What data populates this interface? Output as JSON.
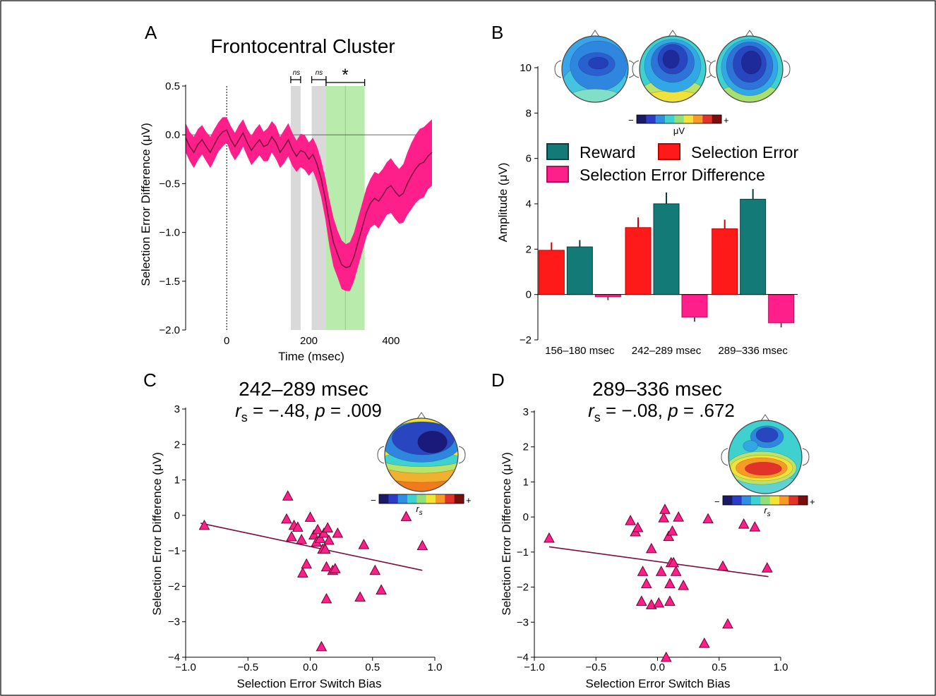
{
  "panels": {
    "A": {
      "letter": "A",
      "title": "Frontocentral Cluster",
      "xlabel": "Time (msec)",
      "ylabel": "Selection Error Difference (μV)",
      "ns1": "ns",
      "ns2": "ns",
      "star": "*"
    },
    "B": {
      "letter": "B",
      "ylabel": "Amplitude (μV)",
      "colorbar_unit": "μV"
    },
    "C": {
      "letter": "C",
      "title": "242–289 msec",
      "stat": "r",
      "stat_sub": "s",
      "stat_value": " = −.48, ",
      "p_label": "p",
      "p_value": " = .009",
      "xlabel": "Selection Error Switch Bias",
      "ylabel": "Selection Error Difference (μV)",
      "colorbar_unit": "r",
      "colorbar_sub": "s"
    },
    "D": {
      "letter": "D",
      "title": "289–336 msec",
      "stat": "r",
      "stat_sub": "s",
      "stat_value": " = −.08, ",
      "p_label": "p",
      "p_value": " = .672",
      "xlabel": "Selection Error Switch Bias",
      "ylabel": "Selection Error Difference (μV)",
      "colorbar_unit": "r",
      "colorbar_sub": "s"
    }
  },
  "colors": {
    "pink": "#ff1f8a",
    "red": "#ff1a1a",
    "teal": "#147a78",
    "line": "#7a1040",
    "gray_shade": "#d9d9d9",
    "green_shade": "#b9ecac"
  },
  "chart_data": [
    {
      "type": "line",
      "panel": "A",
      "title": "Frontocentral Cluster",
      "xlabel": "Time (msec)",
      "ylabel": "Selection Error Difference (μV)",
      "xlim": [
        -100,
        500
      ],
      "ylim": [
        -2.0,
        0.5
      ],
      "xticks": [
        0,
        200,
        400
      ],
      "yticks": [
        0.5,
        0.0,
        -0.5,
        -1.0,
        -1.5,
        -2.0
      ],
      "xtick_labels": [
        "0",
        "200",
        "400"
      ],
      "ytick_labels": [
        "0.5",
        "0.0",
        "−0.5",
        "−1.0",
        "−1.5",
        "−2.0"
      ],
      "series": [
        {
          "x": [
            -100,
            -90,
            -80,
            -70,
            -60,
            -50,
            -40,
            -30,
            -20,
            -10,
            0,
            10,
            20,
            30,
            40,
            50,
            60,
            70,
            80,
            90,
            100,
            110,
            120,
            130,
            140,
            150,
            160,
            170,
            180,
            190,
            200,
            210,
            220,
            230,
            240,
            250,
            260,
            270,
            280,
            290,
            300,
            310,
            320,
            330,
            340,
            350,
            360,
            370,
            380,
            390,
            400,
            410,
            420,
            430,
            440,
            450,
            460,
            470,
            480,
            490,
            500
          ],
          "mean": [
            -0.03,
            -0.12,
            -0.18,
            -0.1,
            -0.05,
            -0.12,
            -0.18,
            -0.1,
            -0.02,
            0.03,
            0.05,
            -0.05,
            -0.12,
            -0.05,
            0.02,
            -0.08,
            -0.16,
            -0.1,
            -0.05,
            -0.12,
            -0.1,
            -0.02,
            -0.08,
            -0.18,
            -0.12,
            -0.05,
            -0.15,
            -0.22,
            -0.16,
            -0.18,
            -0.25,
            -0.2,
            -0.3,
            -0.45,
            -0.65,
            -0.9,
            -1.1,
            -1.22,
            -1.33,
            -1.36,
            -1.35,
            -1.25,
            -1.1,
            -0.95,
            -0.8,
            -0.7,
            -0.65,
            -0.68,
            -0.62,
            -0.55,
            -0.52,
            -0.58,
            -0.63,
            -0.6,
            -0.5,
            -0.42,
            -0.35,
            -0.3,
            -0.28,
            -0.22,
            -0.18
          ],
          "ci_upper": [
            0.12,
            0.03,
            -0.02,
            0.06,
            0.1,
            0.03,
            -0.02,
            0.06,
            0.13,
            0.18,
            0.18,
            0.09,
            0.02,
            0.1,
            0.16,
            0.06,
            -0.01,
            0.06,
            0.11,
            0.03,
            0.07,
            0.14,
            0.09,
            -0.02,
            0.05,
            0.12,
            0.02,
            -0.06,
            0.01,
            0.0,
            -0.08,
            -0.03,
            -0.12,
            -0.26,
            -0.44,
            -0.66,
            -0.85,
            -0.98,
            -1.08,
            -1.12,
            -1.1,
            -1.0,
            -0.85,
            -0.7,
            -0.55,
            -0.45,
            -0.38,
            -0.4,
            -0.35,
            -0.28,
            -0.24,
            -0.3,
            -0.35,
            -0.3,
            -0.18,
            -0.08,
            0.0,
            0.06,
            0.08,
            0.12,
            0.16
          ],
          "ci_lower": [
            -0.18,
            -0.27,
            -0.34,
            -0.26,
            -0.2,
            -0.27,
            -0.34,
            -0.26,
            -0.17,
            -0.12,
            -0.08,
            -0.19,
            -0.26,
            -0.2,
            -0.12,
            -0.22,
            -0.31,
            -0.26,
            -0.21,
            -0.27,
            -0.27,
            -0.18,
            -0.25,
            -0.34,
            -0.29,
            -0.22,
            -0.32,
            -0.38,
            -0.33,
            -0.36,
            -0.42,
            -0.37,
            -0.48,
            -0.64,
            -0.86,
            -1.14,
            -1.35,
            -1.46,
            -1.58,
            -1.6,
            -1.6,
            -1.5,
            -1.35,
            -1.2,
            -1.05,
            -0.95,
            -0.92,
            -0.96,
            -0.89,
            -0.82,
            -0.8,
            -0.86,
            -0.91,
            -0.9,
            -0.82,
            -0.76,
            -0.7,
            -0.66,
            -0.64,
            -0.56,
            -0.52
          ]
        }
      ],
      "shaded_windows": [
        {
          "range": [
            156,
            180
          ],
          "label": "ns",
          "significant": false
        },
        {
          "range": [
            207,
            242
          ],
          "label": "ns",
          "significant": false
        },
        {
          "range": [
            242,
            336
          ],
          "label": "*",
          "significant": true
        }
      ]
    },
    {
      "type": "bar",
      "panel": "B",
      "ylabel": "Amplitude (μV)",
      "ylim": [
        -2,
        10
      ],
      "yticks": [
        -2,
        0,
        2,
        4,
        6,
        8,
        10
      ],
      "categories": [
        "156–180 msec",
        "242–289 msec",
        "289–336 msec"
      ],
      "series": [
        {
          "name": "Selection Error",
          "values": [
            1.95,
            2.95,
            2.9
          ],
          "errors": [
            0.35,
            0.45,
            0.4
          ]
        },
        {
          "name": "Reward",
          "values": [
            2.1,
            4.0,
            4.2
          ],
          "errors": [
            0.3,
            0.5,
            0.45
          ]
        },
        {
          "name": "Selection Error Difference",
          "values": [
            -0.1,
            -1.0,
            -1.25
          ],
          "errors": [
            0.15,
            0.2,
            0.2
          ]
        }
      ],
      "legend": [
        "Reward",
        "Selection Error",
        "Selection Error Difference"
      ]
    },
    {
      "type": "scatter",
      "panel": "C",
      "title": "242–289 msec",
      "xlabel": "Selection Error Switch Bias",
      "ylabel": "Selection Error Difference (μV)",
      "xlim": [
        -1.0,
        1.0
      ],
      "ylim": [
        -4,
        3
      ],
      "xticks": [
        -1.0,
        -0.5,
        0.0,
        0.5,
        1.0
      ],
      "xtick_labels": [
        "−1.0",
        "−0.5",
        "0.0",
        "0.5",
        "1.0"
      ],
      "yticks": [
        3,
        2,
        1,
        0,
        -1,
        -2,
        -3,
        -4
      ],
      "ytick_labels": [
        "3",
        "2",
        "1",
        "0",
        "−1",
        "−2",
        "−3",
        "−4"
      ],
      "points": [
        [
          -0.85,
          -0.28
        ],
        [
          -0.18,
          0.55
        ],
        [
          -0.19,
          -0.1
        ],
        [
          -0.15,
          -0.6
        ],
        [
          -0.13,
          -0.28
        ],
        [
          -0.1,
          -0.33
        ],
        [
          -0.07,
          -0.68
        ],
        [
          -0.06,
          -1.62
        ],
        [
          -0.03,
          -1.37
        ],
        [
          0.0,
          -0.05
        ],
        [
          0.03,
          -0.55
        ],
        [
          0.05,
          -0.75
        ],
        [
          0.06,
          -0.4
        ],
        [
          0.08,
          -0.65
        ],
        [
          0.09,
          -3.7
        ],
        [
          0.1,
          -0.95
        ],
        [
          0.11,
          -0.5
        ],
        [
          0.12,
          -0.95
        ],
        [
          0.13,
          -2.35
        ],
        [
          0.13,
          -1.45
        ],
        [
          0.14,
          -0.35
        ],
        [
          0.15,
          -0.7
        ],
        [
          0.18,
          -1.55
        ],
        [
          0.2,
          -1.5
        ],
        [
          0.22,
          -0.5
        ],
        [
          0.4,
          -2.3
        ],
        [
          0.43,
          -0.82
        ],
        [
          0.52,
          -1.55
        ],
        [
          0.57,
          -2.1
        ],
        [
          0.77,
          -0.03
        ],
        [
          0.9,
          -0.85
        ]
      ],
      "fit_line": {
        "x": [
          -0.88,
          0.9
        ],
        "y": [
          -0.22,
          -1.55
        ]
      }
    },
    {
      "type": "scatter",
      "panel": "D",
      "title": "289–336 msec",
      "xlabel": "Selection Error Switch Bias",
      "ylabel": "Selection Error Difference (μV)",
      "xlim": [
        -1.0,
        1.0
      ],
      "ylim": [
        -4,
        3
      ],
      "xticks": [
        -1.0,
        -0.5,
        0.0,
        0.5,
        1.0
      ],
      "xtick_labels": [
        "−1.0",
        "−0.5",
        "0.0",
        "0.5",
        "1.0"
      ],
      "yticks": [
        3,
        2,
        1,
        0,
        -1,
        -2,
        -3,
        -4
      ],
      "ytick_labels": [
        "3",
        "2",
        "1",
        "0",
        "−1",
        "−2",
        "−3",
        "−4"
      ],
      "points": [
        [
          -0.88,
          -0.6
        ],
        [
          -0.22,
          -0.1
        ],
        [
          -0.18,
          -0.42
        ],
        [
          -0.16,
          -0.3
        ],
        [
          -0.12,
          -1.55
        ],
        [
          -0.13,
          -2.4
        ],
        [
          -0.09,
          -1.9
        ],
        [
          -0.05,
          -0.9
        ],
        [
          -0.05,
          -2.5
        ],
        [
          0.01,
          -2.45
        ],
        [
          0.03,
          -1.55
        ],
        [
          0.05,
          -0.02
        ],
        [
          0.06,
          0.22
        ],
        [
          0.07,
          -4.0
        ],
        [
          0.09,
          -0.55
        ],
        [
          0.1,
          -2.4
        ],
        [
          0.1,
          -1.9
        ],
        [
          0.11,
          -1.3
        ],
        [
          0.12,
          -0.4
        ],
        [
          0.13,
          -1.3
        ],
        [
          0.15,
          -1.55
        ],
        [
          0.17,
          0.0
        ],
        [
          0.21,
          -1.95
        ],
        [
          0.38,
          -3.6
        ],
        [
          0.41,
          -0.05
        ],
        [
          0.53,
          -1.4
        ],
        [
          0.57,
          -3.05
        ],
        [
          0.7,
          -0.2
        ],
        [
          0.79,
          -0.28
        ],
        [
          0.89,
          -1.45
        ]
      ],
      "fit_line": {
        "x": [
          -0.88,
          0.9
        ],
        "y": [
          -0.85,
          -1.7
        ]
      }
    }
  ]
}
